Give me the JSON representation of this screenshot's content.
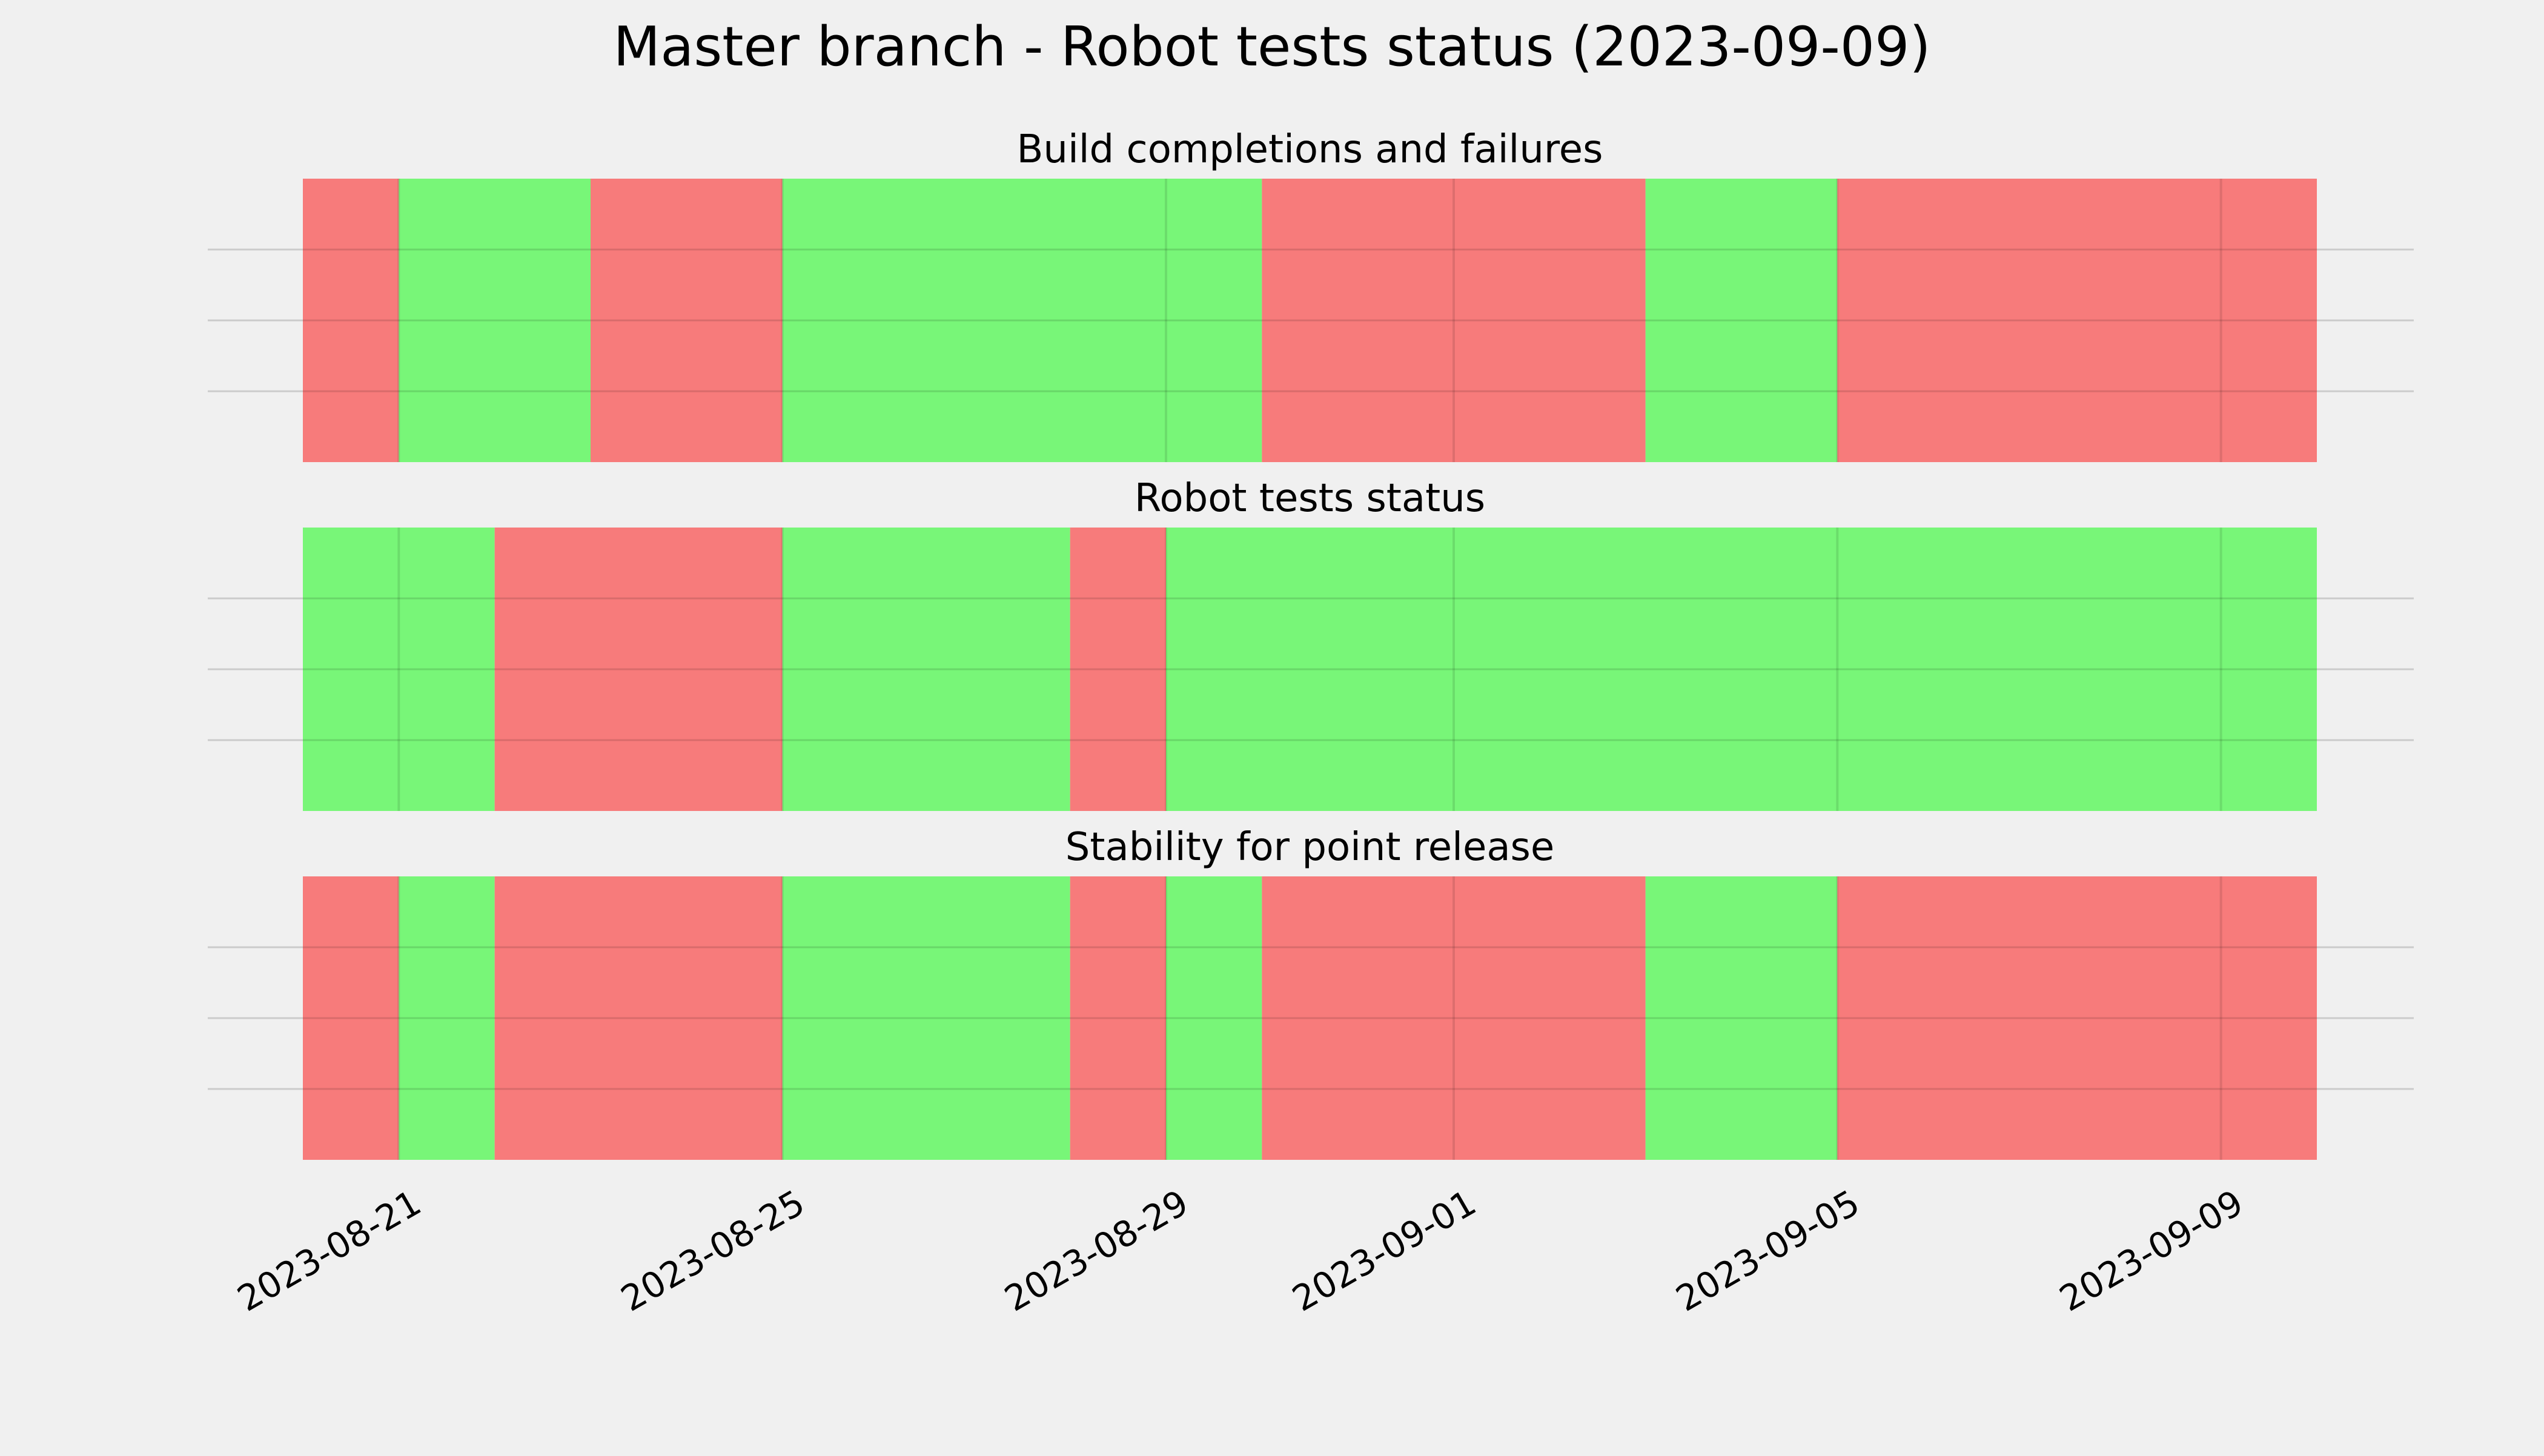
{
  "chart_data": {
    "type": "timeline",
    "title": "Master branch - Robot tests status (2023-09-09)",
    "x_ticks": [
      "2023-08-21",
      "2023-08-25",
      "2023-08-29",
      "2023-09-01",
      "2023-09-05",
      "2023-09-09"
    ],
    "x_range": [
      "2023-08-20",
      "2023-09-10"
    ],
    "grid": true,
    "colors": {
      "pass": "#74f674",
      "fail": "#f77777",
      "background": "#f0f0f0",
      "gridline": "#cbcbcb"
    },
    "panels": [
      {
        "title": "Build completions and failures",
        "segments": [
          {
            "start": "2023-08-20",
            "end": "2023-08-21",
            "status": "fail"
          },
          {
            "start": "2023-08-21",
            "end": "2023-08-23",
            "status": "pass"
          },
          {
            "start": "2023-08-23",
            "end": "2023-08-25",
            "status": "fail"
          },
          {
            "start": "2023-08-25",
            "end": "2023-08-30",
            "status": "pass"
          },
          {
            "start": "2023-08-30",
            "end": "2023-09-03",
            "status": "fail"
          },
          {
            "start": "2023-09-03",
            "end": "2023-09-05",
            "status": "pass"
          },
          {
            "start": "2023-09-05",
            "end": "2023-09-10",
            "status": "fail"
          }
        ]
      },
      {
        "title": "Robot tests status",
        "segments": [
          {
            "start": "2023-08-20",
            "end": "2023-08-22",
            "status": "pass"
          },
          {
            "start": "2023-08-22",
            "end": "2023-08-25",
            "status": "fail"
          },
          {
            "start": "2023-08-25",
            "end": "2023-08-28",
            "status": "pass"
          },
          {
            "start": "2023-08-28",
            "end": "2023-08-29",
            "status": "fail"
          },
          {
            "start": "2023-08-29",
            "end": "2023-09-10",
            "status": "pass"
          }
        ]
      },
      {
        "title": "Stability for point release",
        "segments": [
          {
            "start": "2023-08-20",
            "end": "2023-08-21",
            "status": "fail"
          },
          {
            "start": "2023-08-21",
            "end": "2023-08-22",
            "status": "pass"
          },
          {
            "start": "2023-08-22",
            "end": "2023-08-25",
            "status": "fail"
          },
          {
            "start": "2023-08-25",
            "end": "2023-08-28",
            "status": "pass"
          },
          {
            "start": "2023-08-28",
            "end": "2023-08-29",
            "status": "fail"
          },
          {
            "start": "2023-08-29",
            "end": "2023-08-30",
            "status": "pass"
          },
          {
            "start": "2023-08-30",
            "end": "2023-09-03",
            "status": "fail"
          },
          {
            "start": "2023-09-03",
            "end": "2023-09-05",
            "status": "pass"
          },
          {
            "start": "2023-09-05",
            "end": "2023-09-10",
            "status": "fail"
          }
        ]
      }
    ]
  }
}
